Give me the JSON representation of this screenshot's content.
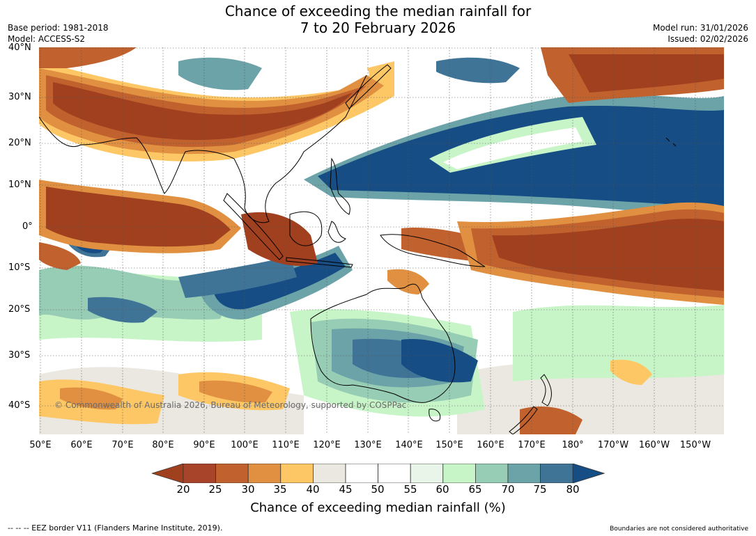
{
  "title_line1": "Chance of exceeding the median rainfall for",
  "title_line2": "7 to 20 February 2026",
  "base_period": "Base period: 1981-2018",
  "model": "Model: ACCESS-S2",
  "model_run": "Model run: 31/01/2026",
  "issued": "Issued: 02/02/2026",
  "lat_labels": [
    "40°N",
    "30°N",
    "20°N",
    "10°N",
    "0°",
    "10°S",
    "20°S",
    "30°S",
    "40°S"
  ],
  "lon_labels": [
    "50°E",
    "60°E",
    "70°E",
    "80°E",
    "90°E",
    "100°E",
    "110°E",
    "120°E",
    "130°E",
    "140°E",
    "150°E",
    "160°E",
    "170°E",
    "180°",
    "170°W",
    "160°W",
    "150°W"
  ],
  "copyright": "© Commonwealth of Australia 2026, Bureau of Meteorology, supported by COSPPac",
  "colorbar": {
    "ticks": [
      "20",
      "25",
      "30",
      "35",
      "40",
      "45",
      "50",
      "55",
      "60",
      "65",
      "70",
      "75",
      "80"
    ],
    "label": "Chance of exceeding median rainfall (%)",
    "colors": [
      "#a0401f",
      "#a8442a",
      "#c1612e",
      "#e09040",
      "#fdc766",
      "#ebe8e2",
      "#ffffff",
      "#ffffff",
      "#e8f5e8",
      "#c8f5c8",
      "#97cdb5",
      "#6ba3a8",
      "#3f7497",
      "#164d84"
    ]
  },
  "footer_left": "--  --  -- EEZ border V11 (Flanders Marine Institute, 2019).",
  "footer_right": "Boundaries are not considered authoritative"
}
